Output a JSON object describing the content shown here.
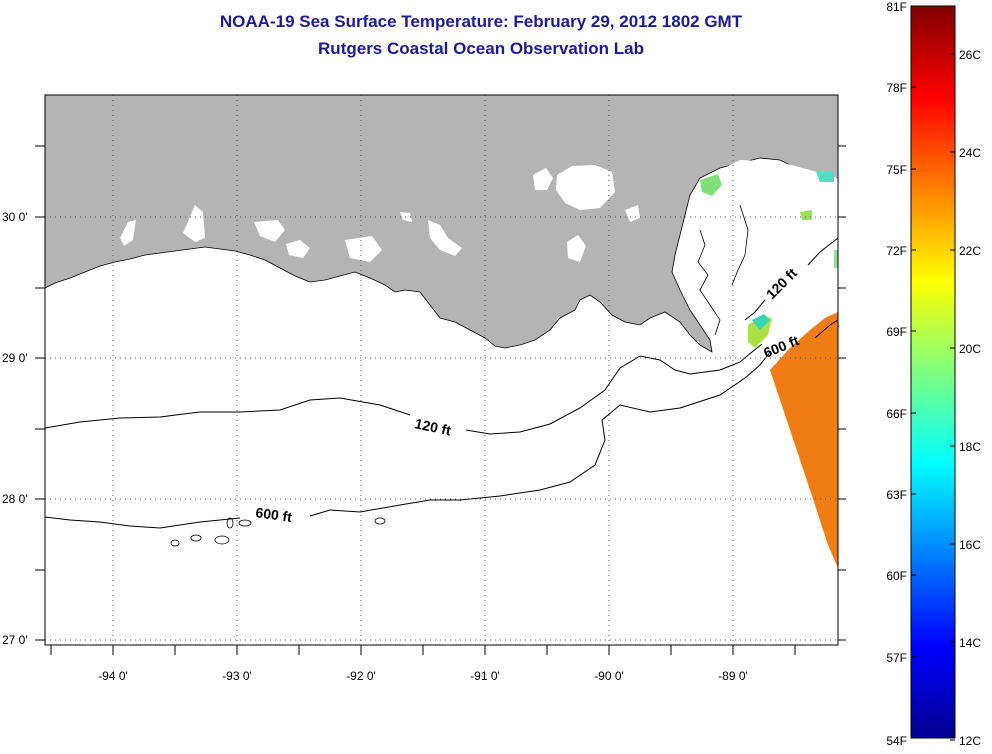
{
  "title": "NOAA-19 Sea Surface Temperature:  February 29, 2012 1802 GMT",
  "subtitle": "Rutgers Coastal Ocean Observation Lab",
  "map": {
    "lon_ticks": [
      "-94 0'",
      "-93 0'",
      "-92 0'",
      "-91 0'",
      "-90 0'",
      "-89 0'"
    ],
    "lat_ticks": [
      "30 0'",
      "29 0'",
      "28 0'",
      "27 0'"
    ],
    "contour_labels": [
      "120 ft",
      "600 ft",
      "120 ft",
      "600 ft"
    ],
    "colors": {
      "land": "#b4b4b4",
      "ocean_nodata": "#ffffff",
      "sst_warm": "#f07c14"
    }
  },
  "colorbar": {
    "fahrenheit_labels": [
      "81F",
      "78F",
      "75F",
      "72F",
      "69F",
      "66F",
      "63F",
      "60F",
      "57F",
      "54F"
    ],
    "celsius_labels": [
      "26C",
      "24C",
      "22C",
      "20C",
      "18C",
      "16C",
      "14C",
      "12C"
    ]
  }
}
